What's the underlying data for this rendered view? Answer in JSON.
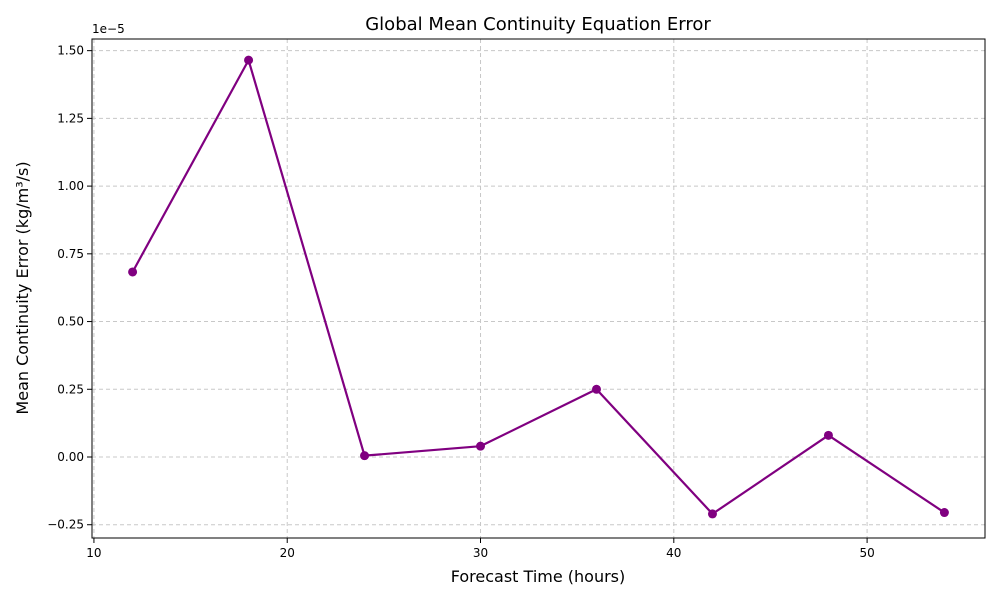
{
  "chart_data": {
    "type": "line",
    "title": "Global Mean Continuity Equation Error",
    "xlabel": "Forecast Time (hours)",
    "ylabel": "Mean Continuity Error (kg/m³/s)",
    "y_offset_label": "1e−5",
    "xlim": [
      9.9,
      56.1
    ],
    "ylim": [
      -2.99e-06,
      1.543e-05
    ],
    "x_ticks": [
      10,
      20,
      30,
      40,
      50
    ],
    "y_ticks": [
      -2.5e-06,
      0,
      2.5e-06,
      5e-06,
      7.5e-06,
      1e-05,
      1.25e-05,
      1.5e-05
    ],
    "y_tick_labels": [
      "−0.25",
      "0.00",
      "0.25",
      "0.50",
      "0.75",
      "1.00",
      "1.25",
      "1.50"
    ],
    "grid": true,
    "series": [
      {
        "color": "#800080",
        "marker": "circle",
        "x": [
          12,
          18,
          24,
          30,
          36,
          42,
          48,
          54
        ],
        "y": [
          6.83e-06,
          1.465e-05,
          5e-08,
          4e-07,
          2.5e-06,
          -2.1e-06,
          8e-07,
          -2.05e-06
        ]
      }
    ]
  }
}
